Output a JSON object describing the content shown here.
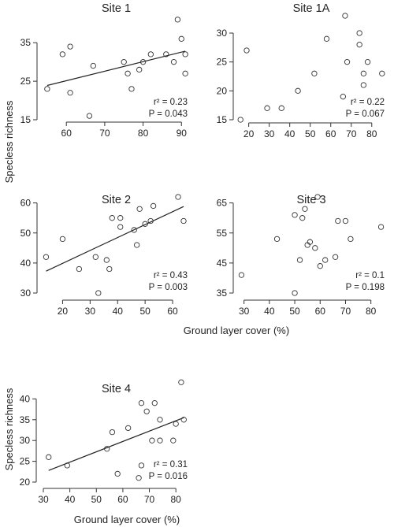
{
  "labels": {
    "ylabel_top": "Specless richness",
    "xlabel_mid": "Ground layer cover (%)",
    "ylabel_bottom": "Specless richness",
    "xlabel_bottom": "Ground layer cover (%)"
  },
  "chart_data": [
    {
      "type": "scatter",
      "title": "Site 1",
      "xlabel": "",
      "ylabel": "",
      "xlim": [
        54,
        92
      ],
      "ylim": [
        15,
        42
      ],
      "xticks": [
        60,
        70,
        80,
        90
      ],
      "yticks": [
        15,
        25,
        35
      ],
      "grid": false,
      "points": [
        {
          "x": 55,
          "y": 23
        },
        {
          "x": 59,
          "y": 32
        },
        {
          "x": 61,
          "y": 34
        },
        {
          "x": 61,
          "y": 22
        },
        {
          "x": 66,
          "y": 16
        },
        {
          "x": 67,
          "y": 29
        },
        {
          "x": 75,
          "y": 30
        },
        {
          "x": 76,
          "y": 27
        },
        {
          "x": 77,
          "y": 23
        },
        {
          "x": 79,
          "y": 28
        },
        {
          "x": 80,
          "y": 30
        },
        {
          "x": 82,
          "y": 32
        },
        {
          "x": 86,
          "y": 32
        },
        {
          "x": 88,
          "y": 30
        },
        {
          "x": 89,
          "y": 41
        },
        {
          "x": 90,
          "y": 36
        },
        {
          "x": 91,
          "y": 27
        },
        {
          "x": 91,
          "y": 32
        }
      ],
      "fit_line": {
        "x": [
          55,
          91
        ],
        "y": [
          23.9,
          32.8
        ]
      },
      "annotation": {
        "r2": "r² = 0.23",
        "p": "P = 0.043"
      }
    },
    {
      "type": "scatter",
      "title": "Site 1A",
      "xlabel": "",
      "ylabel": "",
      "xlim": [
        14,
        87
      ],
      "ylim": [
        15,
        33
      ],
      "xticks": [
        20,
        30,
        40,
        50,
        60,
        70,
        80
      ],
      "yticks": [
        15,
        20,
        25,
        30
      ],
      "grid": false,
      "points": [
        {
          "x": 16,
          "y": 15
        },
        {
          "x": 19,
          "y": 27
        },
        {
          "x": 29,
          "y": 17
        },
        {
          "x": 36,
          "y": 17
        },
        {
          "x": 44,
          "y": 20
        },
        {
          "x": 52,
          "y": 23
        },
        {
          "x": 58,
          "y": 29
        },
        {
          "x": 66,
          "y": 19
        },
        {
          "x": 67,
          "y": 33
        },
        {
          "x": 68,
          "y": 25
        },
        {
          "x": 74,
          "y": 30
        },
        {
          "x": 74,
          "y": 28
        },
        {
          "x": 76,
          "y": 21
        },
        {
          "x": 76,
          "y": 23
        },
        {
          "x": 78,
          "y": 25
        },
        {
          "x": 85,
          "y": 23
        }
      ],
      "annotation": {
        "r2": "r² = 0.22",
        "p": "P = 0.067"
      }
    },
    {
      "type": "scatter",
      "title": "Site 2",
      "xlabel": "",
      "ylabel": "",
      "xlim": [
        13,
        66
      ],
      "ylim": [
        30,
        62
      ],
      "xticks": [
        20,
        30,
        40,
        50,
        60
      ],
      "yticks": [
        30,
        40,
        50,
        60
      ],
      "grid": false,
      "points": [
        {
          "x": 14,
          "y": 42
        },
        {
          "x": 20,
          "y": 48
        },
        {
          "x": 26,
          "y": 38
        },
        {
          "x": 32,
          "y": 42
        },
        {
          "x": 33,
          "y": 30
        },
        {
          "x": 36,
          "y": 41
        },
        {
          "x": 37,
          "y": 38
        },
        {
          "x": 38,
          "y": 55
        },
        {
          "x": 41,
          "y": 52
        },
        {
          "x": 41,
          "y": 55
        },
        {
          "x": 46,
          "y": 51
        },
        {
          "x": 47,
          "y": 46
        },
        {
          "x": 48,
          "y": 58
        },
        {
          "x": 50,
          "y": 53
        },
        {
          "x": 52,
          "y": 54
        },
        {
          "x": 53,
          "y": 59
        },
        {
          "x": 62,
          "y": 62
        },
        {
          "x": 64,
          "y": 54
        }
      ],
      "fit_line": {
        "x": [
          14,
          64
        ],
        "y": [
          37.3,
          58.8
        ]
      },
      "annotation": {
        "r2": "r² = 0.43",
        "p": "P = 0.003"
      }
    },
    {
      "type": "scatter",
      "title": "Site 3",
      "xlabel": "",
      "ylabel": "",
      "xlim": [
        27,
        86
      ],
      "ylim": [
        35,
        67
      ],
      "xticks": [
        30,
        40,
        50,
        60,
        70,
        80
      ],
      "yticks": [
        35,
        45,
        55,
        65
      ],
      "grid": false,
      "points": [
        {
          "x": 29,
          "y": 41
        },
        {
          "x": 43,
          "y": 53
        },
        {
          "x": 50,
          "y": 61
        },
        {
          "x": 50,
          "y": 35
        },
        {
          "x": 52,
          "y": 46
        },
        {
          "x": 53,
          "y": 60
        },
        {
          "x": 54,
          "y": 63
        },
        {
          "x": 55,
          "y": 51
        },
        {
          "x": 56,
          "y": 52
        },
        {
          "x": 58,
          "y": 50
        },
        {
          "x": 59,
          "y": 67
        },
        {
          "x": 60,
          "y": 44
        },
        {
          "x": 62,
          "y": 46
        },
        {
          "x": 66,
          "y": 47
        },
        {
          "x": 67,
          "y": 59
        },
        {
          "x": 70,
          "y": 59
        },
        {
          "x": 72,
          "y": 53
        },
        {
          "x": 84,
          "y": 57
        }
      ],
      "annotation": {
        "r2": "r² = 0.1",
        "p": "P = 0.198"
      }
    },
    {
      "type": "scatter",
      "title": "Site 4",
      "xlabel": "Ground layer cover (%)",
      "ylabel": "Specless richness",
      "xlim": [
        30,
        85
      ],
      "ylim": [
        20,
        45
      ],
      "xticks": [
        30,
        40,
        50,
        60,
        70,
        80
      ],
      "yticks": [
        20,
        25,
        30,
        35,
        40
      ],
      "grid": false,
      "points": [
        {
          "x": 32,
          "y": 26
        },
        {
          "x": 39,
          "y": 24
        },
        {
          "x": 54,
          "y": 28
        },
        {
          "x": 56,
          "y": 32
        },
        {
          "x": 58,
          "y": 22
        },
        {
          "x": 62,
          "y": 33
        },
        {
          "x": 66,
          "y": 21
        },
        {
          "x": 67,
          "y": 24
        },
        {
          "x": 67,
          "y": 39
        },
        {
          "x": 69,
          "y": 37
        },
        {
          "x": 71,
          "y": 30
        },
        {
          "x": 72,
          "y": 39
        },
        {
          "x": 74,
          "y": 30
        },
        {
          "x": 74,
          "y": 35
        },
        {
          "x": 79,
          "y": 30
        },
        {
          "x": 80,
          "y": 34
        },
        {
          "x": 82,
          "y": 44
        },
        {
          "x": 83,
          "y": 35
        }
      ],
      "fit_line": {
        "x": [
          32,
          83
        ],
        "y": [
          22.8,
          35.5
        ]
      },
      "annotation": {
        "r2": "r² = 0.31",
        "p": "P = 0.016"
      }
    }
  ]
}
